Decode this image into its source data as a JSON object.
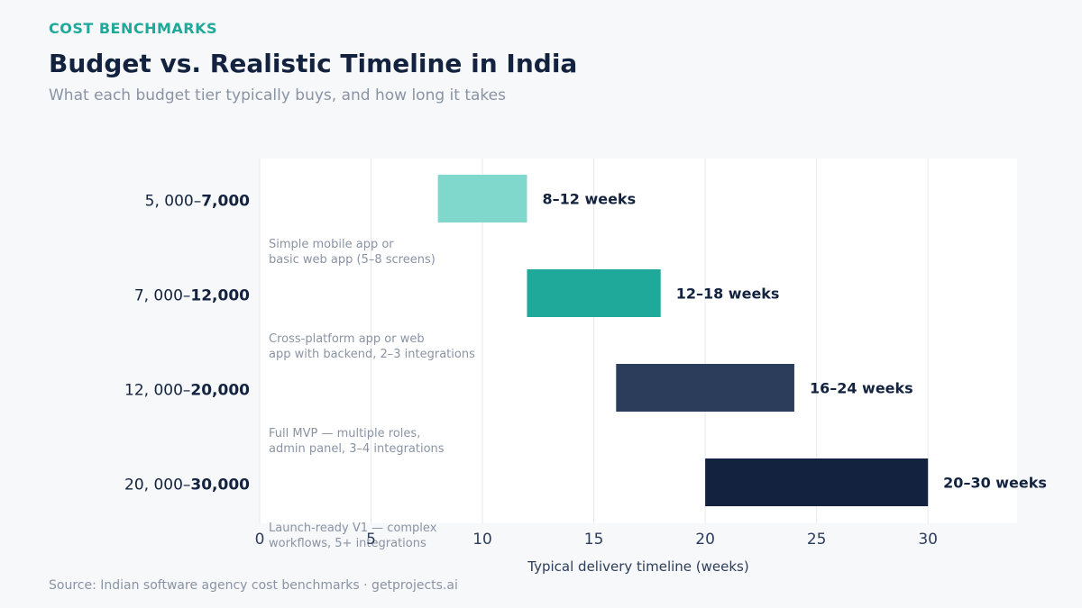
{
  "header": {
    "eyebrow": "COST BENCHMARKS",
    "title": "Budget vs. Realistic Timeline in India",
    "subtitle": "What each budget tier typically buys, and how long it takes"
  },
  "footer": {
    "source": "Source: Indian software agency cost benchmarks · getprojects.ai"
  },
  "colors": {
    "tier1": "#80d8cc",
    "tier2": "#1fa99a",
    "tier3": "#2c3d5c",
    "tier4": "#13233f",
    "grid": "#e6e8ec",
    "label_dark": "#13233f",
    "label_muted": "#8a93a4"
  },
  "chart_data": {
    "type": "bar",
    "orientation": "horizontal-range",
    "xlabel": "Typical delivery timeline (weeks)",
    "xlim": [
      0,
      34
    ],
    "xticks": [
      0,
      5,
      10,
      15,
      20,
      25,
      30
    ],
    "grid": true,
    "categories": [
      {
        "label_pre": "5, 000–",
        "label_bold": "7,000",
        "start": 8,
        "end": 12,
        "value_label": "8–12 weeks",
        "description": [
          "Simple mobile app or",
          "basic web app (5–8 screens)"
        ],
        "color": "#80d8cc"
      },
      {
        "label_pre": "7, 000–",
        "label_bold": "12,000",
        "start": 12,
        "end": 18,
        "value_label": "12–18 weeks",
        "description": [
          "Cross-platform app or web",
          "app with backend, 2–3 integrations"
        ],
        "color": "#1fa99a"
      },
      {
        "label_pre": "12, 000–",
        "label_bold": "20,000",
        "start": 16,
        "end": 24,
        "value_label": "16–24 weeks",
        "description": [
          "Full MVP — multiple roles,",
          "admin panel, 3–4 integrations"
        ],
        "color": "#2c3d5c"
      },
      {
        "label_pre": "20, 000–",
        "label_bold": "30,000",
        "start": 20,
        "end": 30,
        "value_label": "20–30 weeks",
        "description": [
          "Launch-ready V1 — complex",
          "workflows, 5+ integrations"
        ],
        "color": "#13233f"
      }
    ]
  }
}
